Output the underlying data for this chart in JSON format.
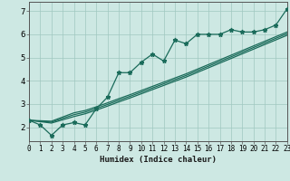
{
  "xlabel": "Humidex (Indice chaleur)",
  "bg_color": "#cde8e3",
  "grid_color": "#a0c8c0",
  "line_color": "#1a6b5a",
  "x_data": [
    0,
    1,
    2,
    3,
    4,
    5,
    6,
    7,
    8,
    9,
    10,
    11,
    12,
    13,
    14,
    15,
    16,
    17,
    18,
    19,
    20,
    21,
    22,
    23
  ],
  "y_zigzag": [
    2.3,
    2.1,
    1.65,
    2.1,
    2.2,
    2.1,
    2.8,
    3.3,
    4.35,
    4.35,
    4.8,
    5.15,
    4.85,
    5.75,
    5.6,
    6.0,
    6.0,
    6.0,
    6.2,
    6.1,
    6.1,
    6.2,
    6.4,
    7.1
  ],
  "y_line1": [
    2.3,
    2.28,
    2.26,
    2.44,
    2.62,
    2.72,
    2.88,
    3.05,
    3.23,
    3.4,
    3.58,
    3.76,
    3.94,
    4.12,
    4.3,
    4.5,
    4.7,
    4.9,
    5.1,
    5.3,
    5.5,
    5.7,
    5.9,
    6.1
  ],
  "y_line2": [
    2.3,
    2.26,
    2.22,
    2.38,
    2.54,
    2.65,
    2.81,
    2.98,
    3.16,
    3.33,
    3.51,
    3.69,
    3.87,
    4.05,
    4.23,
    4.43,
    4.63,
    4.83,
    5.03,
    5.23,
    5.43,
    5.63,
    5.83,
    6.03
  ],
  "y_line3": [
    2.3,
    2.24,
    2.18,
    2.32,
    2.46,
    2.58,
    2.74,
    2.91,
    3.09,
    3.26,
    3.44,
    3.62,
    3.8,
    3.98,
    4.16,
    4.36,
    4.56,
    4.76,
    4.96,
    5.16,
    5.36,
    5.56,
    5.76,
    5.96
  ],
  "xlim": [
    0,
    23
  ],
  "ylim": [
    1.4,
    7.4
  ],
  "xticks": [
    0,
    1,
    2,
    3,
    4,
    5,
    6,
    7,
    8,
    9,
    10,
    11,
    12,
    13,
    14,
    15,
    16,
    17,
    18,
    19,
    20,
    21,
    22,
    23
  ],
  "yticks": [
    2,
    3,
    4,
    5,
    6,
    7
  ],
  "markersize": 3.5,
  "linewidth": 0.9
}
